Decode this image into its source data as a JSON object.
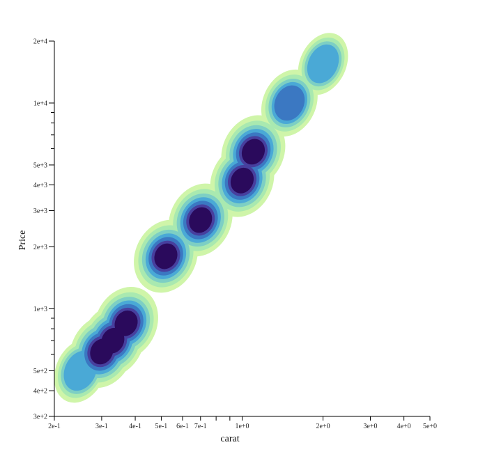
{
  "chart_data": {
    "type": "density contour",
    "xlabel": "carat",
    "ylabel": "Price",
    "x_scale": "log",
    "y_scale": "log",
    "xlim": [
      0.2,
      5
    ],
    "ylim": [
      300,
      20000
    ],
    "x_ticks": [
      {
        "value": 0.2,
        "label": "2e-1"
      },
      {
        "value": 0.3,
        "label": "3e-1"
      },
      {
        "value": 0.4,
        "label": "4e-1"
      },
      {
        "value": 0.5,
        "label": "5e-1"
      },
      {
        "value": 0.6,
        "label": "6e-1"
      },
      {
        "value": 0.7,
        "label": "7e-1"
      },
      {
        "value": 1,
        "label": "1e+0"
      },
      {
        "value": 2,
        "label": "2e+0"
      },
      {
        "value": 3,
        "label": "3e+0"
      },
      {
        "value": 4,
        "label": "4e+0"
      },
      {
        "value": 5,
        "label": "5e+0"
      }
    ],
    "x_minor_ticks": [
      0.8,
      0.9
    ],
    "y_ticks": [
      {
        "value": 300,
        "label": "3e+2"
      },
      {
        "value": 400,
        "label": "4e+2"
      },
      {
        "value": 500,
        "label": "5e+2"
      },
      {
        "value": 1000,
        "label": "1e+3"
      },
      {
        "value": 2000,
        "label": "2e+3"
      },
      {
        "value": 3000,
        "label": "3e+3"
      },
      {
        "value": 4000,
        "label": "4e+3"
      },
      {
        "value": 5000,
        "label": "5e+3"
      },
      {
        "value": 10000,
        "label": "1e+4"
      },
      {
        "value": 20000,
        "label": "2e+4"
      }
    ],
    "y_minor_ticks": [
      600,
      700,
      800,
      900,
      6000,
      7000,
      8000,
      9000
    ],
    "level_colors": [
      "#cff5a9",
      "#a9e9b0",
      "#7dcfc4",
      "#4aa9d6",
      "#3b78c2",
      "#473f9e",
      "#2a0a5c"
    ],
    "clusters": [
      {
        "carat": 0.25,
        "price": 500,
        "peak": 0.55
      },
      {
        "carat": 0.3,
        "price": 620,
        "peak": 1.0
      },
      {
        "carat": 0.33,
        "price": 700,
        "peak": 1.0
      },
      {
        "carat": 0.37,
        "price": 850,
        "peak": 1.0
      },
      {
        "carat": 0.52,
        "price": 1800,
        "peak": 1.0
      },
      {
        "carat": 0.7,
        "price": 2700,
        "peak": 1.0
      },
      {
        "carat": 1.0,
        "price": 4200,
        "peak": 1.0
      },
      {
        "carat": 1.1,
        "price": 5800,
        "peak": 1.0
      },
      {
        "carat": 1.5,
        "price": 10000,
        "peak": 0.7
      },
      {
        "carat": 2.0,
        "price": 15500,
        "peak": 0.45
      }
    ]
  }
}
